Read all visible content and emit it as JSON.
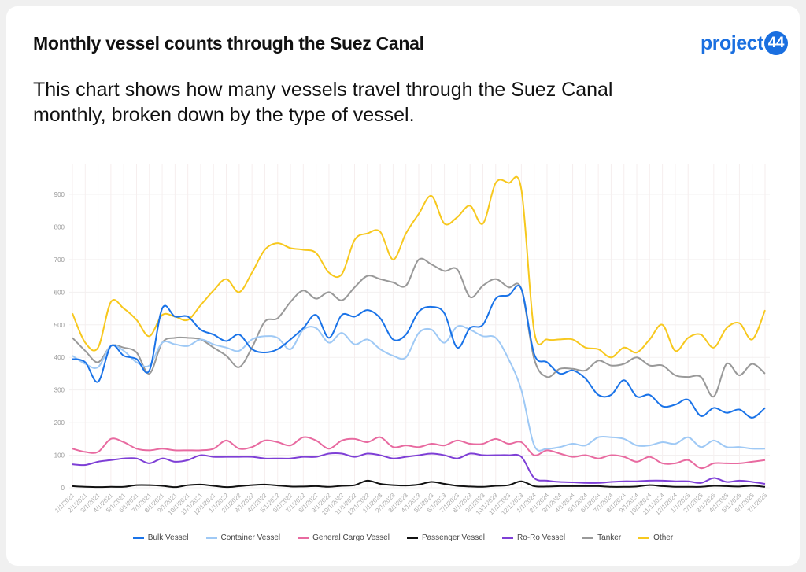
{
  "header": {
    "title": "Monthly vessel counts through the Suez Canal",
    "logo_text": "project",
    "logo_num": "44",
    "subtitle": "This chart shows how many vessels travel through the Suez Canal monthly, broken down by the type of vessel."
  },
  "chart_data": {
    "type": "line",
    "title": "Monthly vessel counts through the Suez Canal",
    "xlabel": "",
    "ylabel": "",
    "ylim": [
      0,
      990
    ],
    "yticks": [
      0,
      100,
      200,
      300,
      400,
      500,
      600,
      700,
      800,
      900
    ],
    "grid": true,
    "legend_position": "bottom",
    "x": [
      "1/1/2021",
      "2/1/2021",
      "3/1/2021",
      "4/1/2021",
      "5/1/2021",
      "6/1/2021",
      "7/1/2021",
      "8/1/2021",
      "9/1/2021",
      "10/1/2021",
      "11/1/2021",
      "12/1/2021",
      "1/1/2022",
      "2/1/2022",
      "3/1/2022",
      "4/1/2022",
      "5/1/2022",
      "6/1/2022",
      "7/1/2022",
      "8/1/2022",
      "9/1/2022",
      "10/1/2022",
      "11/1/2022",
      "12/1/2022",
      "1/1/2023",
      "2/1/2023",
      "3/1/2023",
      "4/1/2023",
      "5/1/2023",
      "6/1/2023",
      "7/1/2023",
      "8/1/2023",
      "9/1/2023",
      "10/1/2023",
      "11/1/2023",
      "12/1/2023",
      "1/1/2024",
      "2/1/2024",
      "3/1/2024",
      "4/1/2024",
      "5/1/2024",
      "6/1/2024",
      "7/1/2024",
      "8/1/2024",
      "9/1/2024",
      "10/1/2024",
      "11/1/2024",
      "12/1/2024",
      "1/1/2025",
      "2/1/2025",
      "3/1/2025",
      "4/1/2025",
      "5/1/2025",
      "6/1/2025",
      "7/1/2025"
    ],
    "series": [
      {
        "name": "Bulk Vessel",
        "color": "#1a73e8",
        "values": [
          395,
          385,
          325,
          435,
          405,
          395,
          360,
          550,
          525,
          525,
          485,
          470,
          450,
          470,
          425,
          415,
          425,
          455,
          490,
          530,
          460,
          530,
          525,
          545,
          520,
          455,
          470,
          540,
          555,
          535,
          430,
          490,
          500,
          580,
          590,
          610,
          410,
          385,
          350,
          360,
          335,
          285,
          285,
          330,
          280,
          285,
          250,
          255,
          270,
          220,
          245,
          230,
          240,
          215,
          245
        ]
      },
      {
        "name": "Container Vessel",
        "color": "#9fc9f5",
        "values": [
          405,
          380,
          370,
          435,
          420,
          385,
          375,
          445,
          440,
          435,
          455,
          440,
          430,
          420,
          455,
          465,
          460,
          425,
          485,
          490,
          445,
          475,
          440,
          455,
          425,
          405,
          400,
          475,
          485,
          445,
          495,
          485,
          465,
          460,
          395,
          300,
          130,
          120,
          125,
          135,
          130,
          155,
          155,
          150,
          130,
          130,
          140,
          135,
          155,
          125,
          145,
          125,
          125,
          120,
          120
        ]
      },
      {
        "name": "General Cargo Vessel",
        "color": "#e86aa0",
        "values": [
          120,
          110,
          110,
          150,
          140,
          120,
          115,
          120,
          115,
          115,
          115,
          120,
          145,
          120,
          125,
          145,
          140,
          130,
          155,
          145,
          120,
          145,
          150,
          140,
          155,
          125,
          130,
          125,
          135,
          130,
          145,
          135,
          135,
          150,
          135,
          140,
          100,
          115,
          105,
          95,
          100,
          90,
          100,
          95,
          80,
          95,
          75,
          75,
          85,
          60,
          75,
          75,
          75,
          80,
          85
        ]
      },
      {
        "name": "Passenger Vessel",
        "color": "#111111",
        "values": [
          5,
          3,
          2,
          3,
          3,
          8,
          8,
          6,
          2,
          8,
          10,
          6,
          2,
          5,
          8,
          10,
          7,
          4,
          4,
          5,
          3,
          6,
          8,
          22,
          12,
          8,
          7,
          10,
          18,
          12,
          6,
          4,
          3,
          6,
          8,
          20,
          5,
          4,
          5,
          5,
          5,
          5,
          3,
          3,
          4,
          8,
          5,
          3,
          3,
          3,
          6,
          5,
          4,
          6,
          3
        ]
      },
      {
        "name": "Ro-Ro Vessel",
        "color": "#7e3fd6",
        "values": [
          72,
          70,
          80,
          85,
          90,
          90,
          75,
          90,
          80,
          85,
          100,
          95,
          95,
          95,
          95,
          90,
          90,
          90,
          95,
          95,
          105,
          105,
          95,
          105,
          100,
          90,
          95,
          100,
          105,
          100,
          90,
          105,
          100,
          100,
          100,
          95,
          30,
          22,
          18,
          17,
          15,
          15,
          18,
          20,
          20,
          22,
          22,
          20,
          20,
          15,
          30,
          18,
          22,
          18,
          12
        ]
      },
      {
        "name": "Tanker",
        "color": "#999999",
        "values": [
          460,
          420,
          385,
          435,
          430,
          415,
          350,
          445,
          460,
          460,
          455,
          430,
          405,
          370,
          430,
          510,
          520,
          570,
          605,
          580,
          600,
          575,
          615,
          650,
          640,
          630,
          620,
          700,
          685,
          665,
          670,
          585,
          620,
          640,
          615,
          610,
          395,
          340,
          365,
          365,
          360,
          390,
          375,
          380,
          400,
          375,
          375,
          345,
          340,
          340,
          280,
          380,
          345,
          380,
          350
        ]
      },
      {
        "name": "Other",
        "color": "#f7c81e",
        "values": [
          535,
          445,
          430,
          570,
          550,
          515,
          465,
          530,
          525,
          515,
          560,
          605,
          640,
          600,
          660,
          730,
          750,
          735,
          730,
          720,
          660,
          655,
          760,
          780,
          785,
          700,
          780,
          840,
          895,
          810,
          830,
          865,
          810,
          935,
          935,
          915,
          480,
          455,
          455,
          455,
          430,
          425,
          400,
          430,
          415,
          455,
          500,
          420,
          460,
          470,
          430,
          490,
          505,
          455,
          545
        ]
      }
    ]
  }
}
